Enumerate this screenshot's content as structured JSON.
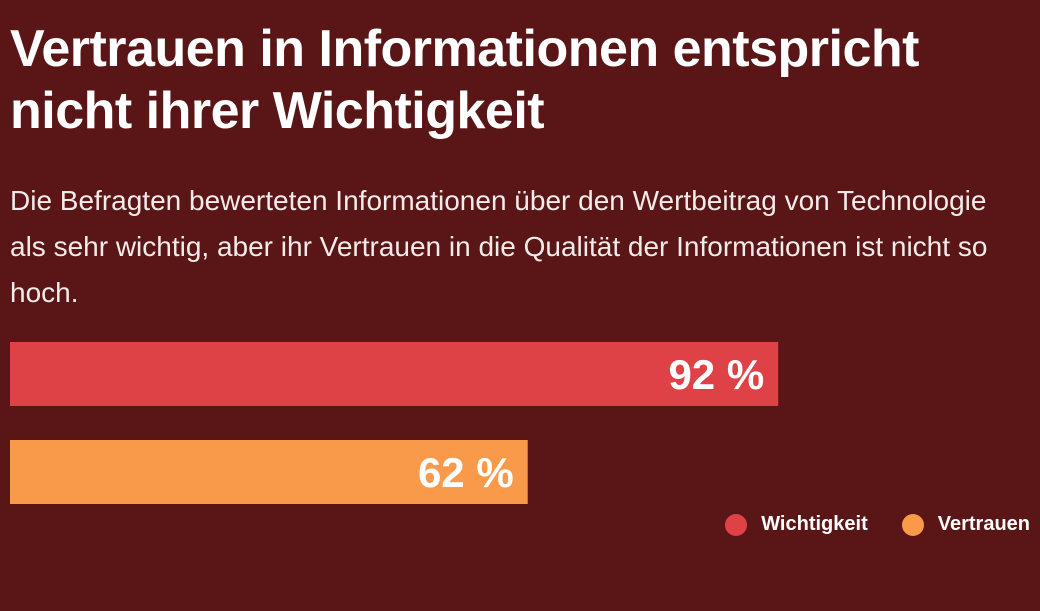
{
  "header": {
    "title": "Vertrauen in Informationen entspricht nicht ihrer Wichtigkeit",
    "subtitle": "Die Befragten bewerteten Informationen über den Wertbeitrag von Technologie als sehr wichtig, aber ihr Vertrauen in die Qualität der Informationen ist nicht so hoch."
  },
  "chart_data": {
    "type": "bar",
    "orientation": "horizontal",
    "categories": [
      "Wichtigkeit",
      "Vertrauen"
    ],
    "values": [
      92,
      62
    ],
    "value_labels": [
      "92 %",
      "62 %"
    ],
    "colors": [
      "#de4146",
      "#f99a4b"
    ],
    "xlim": [
      0,
      100
    ],
    "grid": false,
    "legend_position": "bottom-right",
    "legend": [
      {
        "name": "Wichtigkeit",
        "color": "#de4146"
      },
      {
        "name": "Vertrauen",
        "color": "#f99a4b"
      }
    ]
  }
}
